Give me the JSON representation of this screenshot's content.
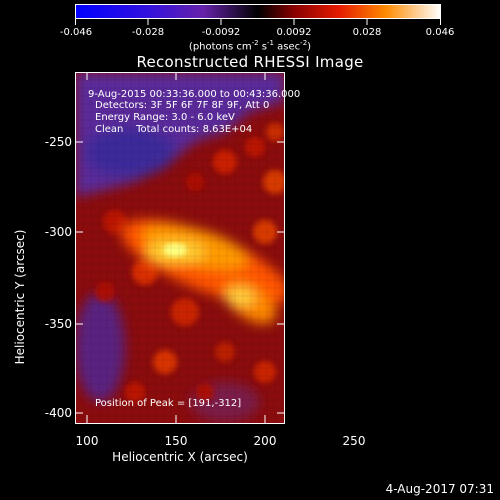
{
  "colorbar": {
    "ticks": [
      "-0.046",
      "-0.028",
      "-0.0092",
      "0.0092",
      "0.028",
      "0.046"
    ],
    "units_prefix": "(photons cm",
    "units_exp1": "-2",
    "units_mid": " s",
    "units_exp2": "-1",
    "units_mid2": " asec",
    "units_exp3": "-2",
    "units_suffix": ")"
  },
  "title": "Reconstructed RHESSI Image",
  "info": {
    "line1": "9-Aug-2015 00:33:36.000 to 00:43:36.000",
    "line2": "Detectors: 3F 5F 6F 7F 8F 9F, Att 0",
    "line3": "Energy Range: 3.0 - 6.0 keV",
    "line4": "Clean    Total counts: 8.63E+04",
    "peak": "Position of Peak = [191,-312]"
  },
  "axes": {
    "xlabel": "Heliocentric X (arcsec)",
    "ylabel": "Heliocentric Y (arcsec)",
    "xticks": [
      "100",
      "150",
      "200",
      "250"
    ],
    "yticks": [
      "-250",
      "-300",
      "-350",
      "-400"
    ]
  },
  "footer_date": "4-Aug-2017 07:31",
  "colors": {
    "background": "#000000",
    "cold": "#5a2a9a",
    "hot": "#ffff80"
  }
}
